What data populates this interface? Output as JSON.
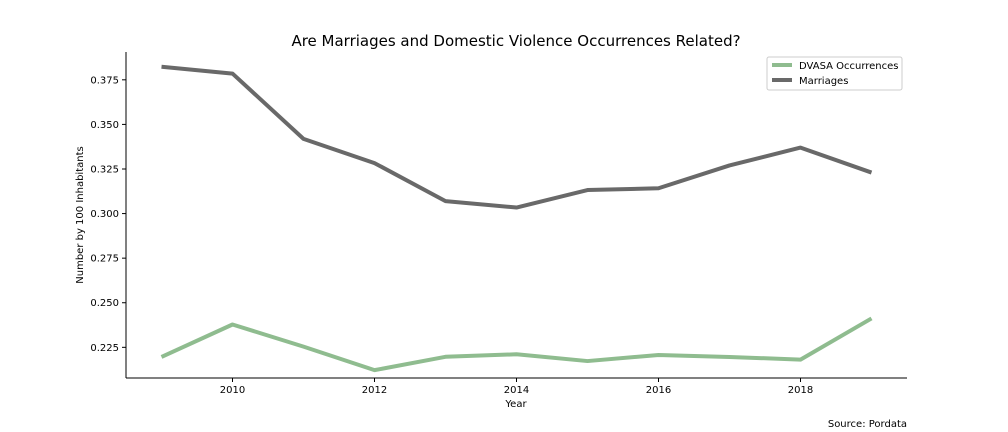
{
  "chart_data": {
    "type": "line",
    "title": "Are Marriages and Domestic Violence Occurrences Related?",
    "xlabel": "Year",
    "ylabel": "Number by 100 Inhabitants",
    "x": [
      2009,
      2010,
      2011,
      2012,
      2013,
      2014,
      2015,
      2016,
      2017,
      2018,
      2019
    ],
    "x_ticks": [
      2010,
      2012,
      2014,
      2016,
      2018
    ],
    "x_tick_labels": [
      "2010",
      "2012",
      "2014",
      "2016",
      "2018"
    ],
    "y_ticks": [
      0.225,
      0.25,
      0.275,
      0.3,
      0.325,
      0.35,
      0.375
    ],
    "y_tick_labels": [
      "0.225",
      "0.250",
      "0.275",
      "0.300",
      "0.325",
      "0.350",
      "0.375"
    ],
    "xlim": [
      2008.5,
      2019.5
    ],
    "ylim": [
      0.2078,
      0.3906
    ],
    "series": [
      {
        "name": "DVASA Occurrences",
        "color": "#8fbc8f",
        "values": [
          0.2196,
          0.2378,
          0.2254,
          0.2122,
          0.2197,
          0.2211,
          0.2173,
          0.2207,
          0.2196,
          0.2181,
          0.2412
        ]
      },
      {
        "name": "Marriages",
        "color": "#696969",
        "values": [
          0.3823,
          0.3785,
          0.3419,
          0.3283,
          0.307,
          0.3034,
          0.3132,
          0.3142,
          0.327,
          0.337,
          0.323
        ]
      }
    ],
    "legend_position": "top-right",
    "grid": false,
    "source": "Source: Pordata"
  }
}
